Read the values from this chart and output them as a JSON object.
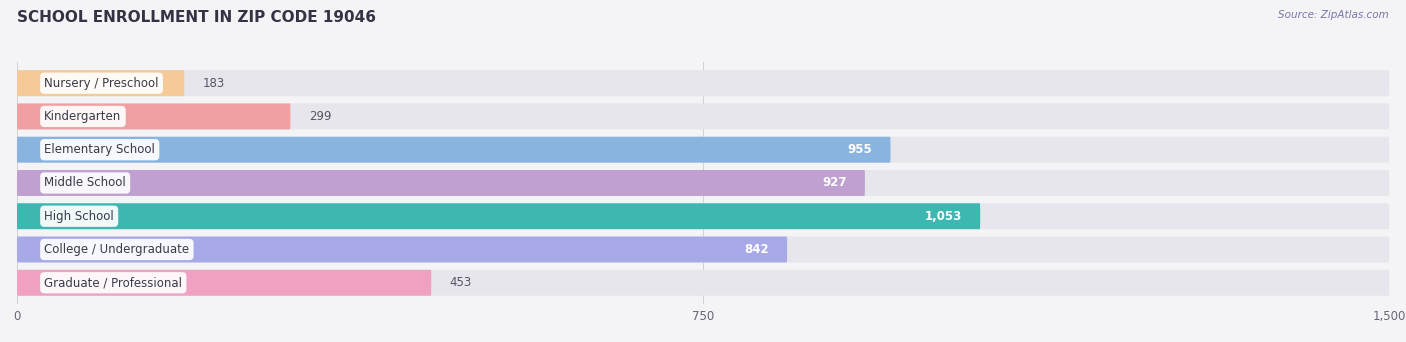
{
  "title": "SCHOOL ENROLLMENT IN ZIP CODE 19046",
  "source": "Source: ZipAtlas.com",
  "categories": [
    "Nursery / Preschool",
    "Kindergarten",
    "Elementary School",
    "Middle School",
    "High School",
    "College / Undergraduate",
    "Graduate / Professional"
  ],
  "values": [
    183,
    299,
    955,
    927,
    1053,
    842,
    453
  ],
  "bar_colors": [
    "#f5c998",
    "#f0a0a0",
    "#8ab4e0",
    "#c0a0d0",
    "#3db8b0",
    "#a8aae8",
    "#f0a0c0"
  ],
  "xlim_max": 1500,
  "xticks": [
    0,
    750,
    1500
  ],
  "bg_color": "#f4f4f6",
  "bar_bg_color": "#e6e6ec",
  "title_fontsize": 11,
  "label_fontsize": 8.5,
  "value_fontsize": 8.5
}
